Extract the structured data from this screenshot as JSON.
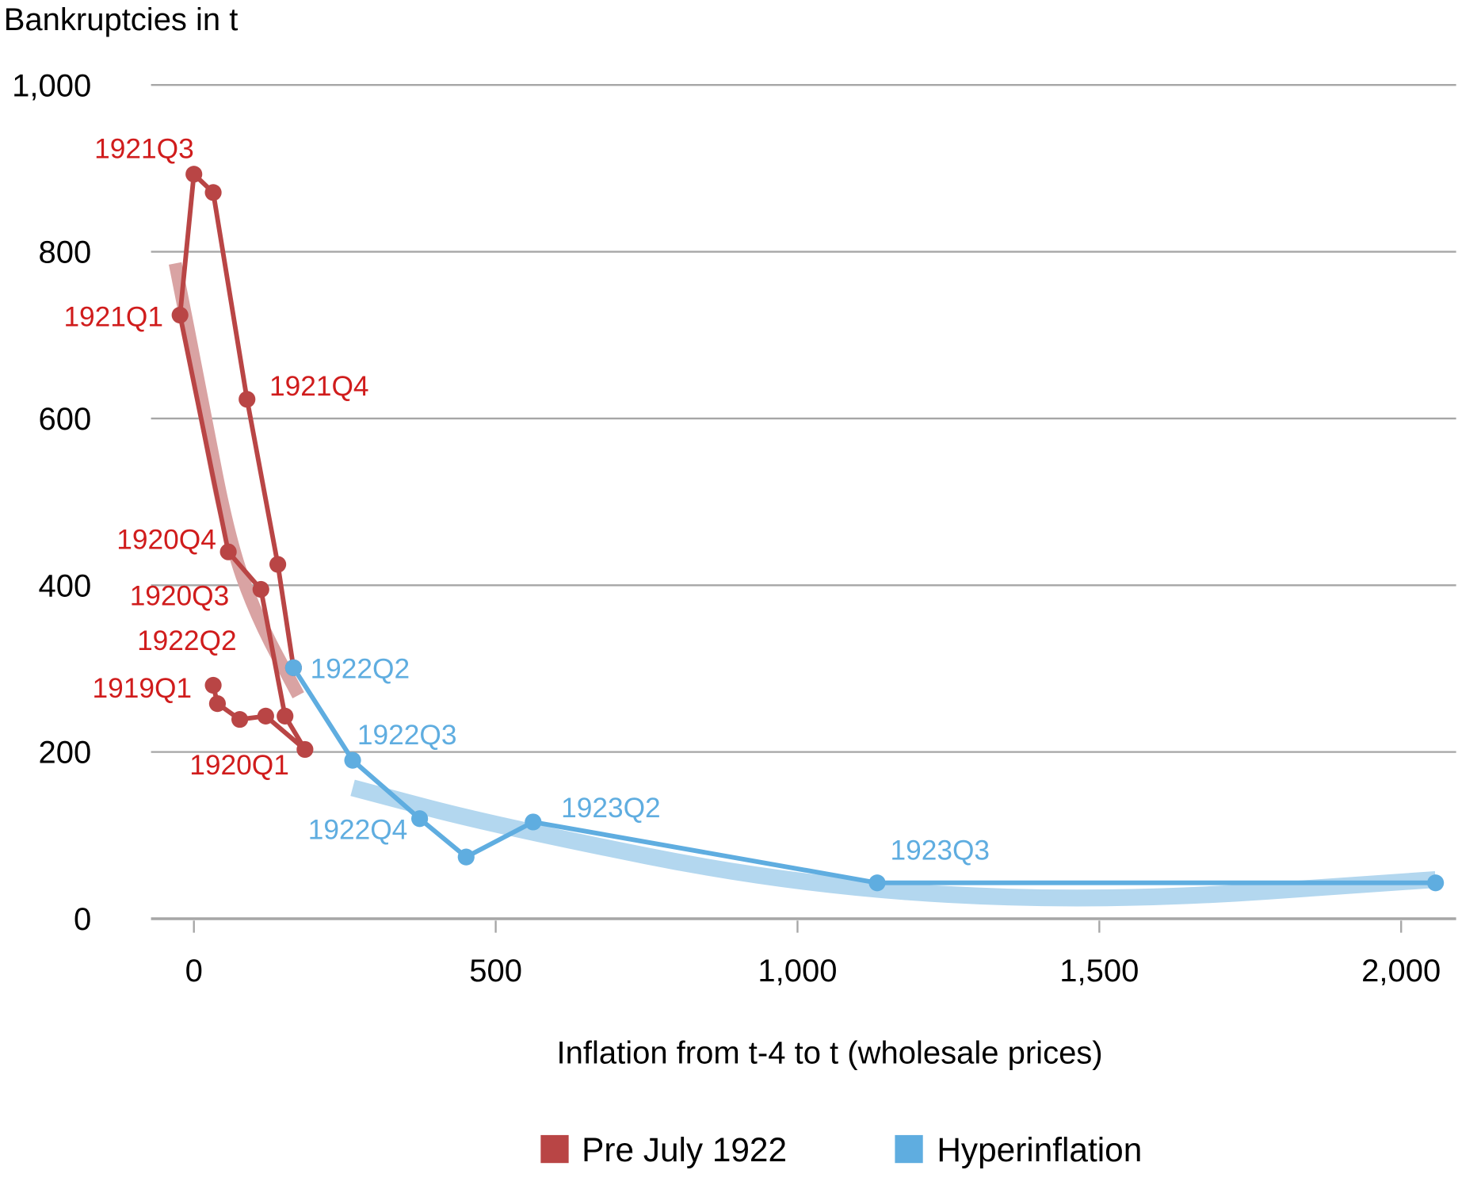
{
  "chart_data": {
    "type": "line",
    "ylabel": "Bankruptcies in t",
    "xlabel": "Inflation from t-4 to t (wholesale prices)",
    "xlim": [
      -70,
      2080
    ],
    "ylim": [
      0,
      1000
    ],
    "x_ticks": [
      0,
      500,
      1000,
      1500,
      2000
    ],
    "x_tick_labels": [
      "0",
      "500",
      "1,000",
      "1,500",
      "2,000"
    ],
    "y_ticks": [
      0,
      200,
      400,
      600,
      800,
      1000
    ],
    "y_tick_labels": [
      "0",
      "200",
      "400",
      "600",
      "800",
      "1,000"
    ],
    "grid": "horizontal",
    "legend_position": "bottom",
    "series": [
      {
        "name": "Pre July 1922",
        "color": "#b94545",
        "points": [
          [
            32,
            280
          ],
          [
            39,
            258
          ],
          [
            76,
            239
          ],
          [
            119,
            243
          ],
          [
            184,
            203
          ],
          [
            151,
            243
          ],
          [
            111,
            395
          ],
          [
            57,
            440
          ],
          [
            -23,
            724
          ],
          [
            0,
            893
          ],
          [
            32,
            871
          ],
          [
            88,
            623
          ],
          [
            139,
            425
          ],
          [
            165,
            301
          ]
        ],
        "trend": [
          [
            -31,
            786
          ],
          [
            11,
            632
          ],
          [
            57,
            458
          ],
          [
            103,
            363
          ],
          [
            173,
            268
          ]
        ],
        "trend_color": "#d9a3a3"
      },
      {
        "name": "Hyperinflation",
        "color": "#5fade0",
        "points": [
          [
            165,
            301
          ],
          [
            263,
            190
          ],
          [
            374,
            120
          ],
          [
            451,
            74
          ],
          [
            562,
            116
          ],
          [
            1132,
            43
          ],
          [
            2057,
            43
          ]
        ],
        "trend": [
          [
            263,
            157
          ],
          [
            497,
            112
          ],
          [
            1000,
            39
          ],
          [
            1500,
            19
          ],
          [
            2057,
            47
          ]
        ],
        "trend_color": "#b3d7ef"
      }
    ],
    "annotations": [
      {
        "text": "1921Q3",
        "series": 0,
        "x": 0,
        "y": 893
      },
      {
        "text": "1921Q1",
        "series": 0,
        "x": -23,
        "y": 724
      },
      {
        "text": "1921Q4",
        "series": 0,
        "x": 88,
        "y": 623
      },
      {
        "text": "1920Q4",
        "series": 0,
        "x": 57,
        "y": 440
      },
      {
        "text": "1920Q3",
        "series": 0,
        "x": 111,
        "y": 395
      },
      {
        "text": "1922Q2",
        "series": 0,
        "x": 165,
        "y": 301
      },
      {
        "text": "1919Q1",
        "series": 0,
        "x": 32,
        "y": 280
      },
      {
        "text": "1920Q1",
        "series": 0,
        "x": 184,
        "y": 203
      },
      {
        "text": "1922Q2",
        "series": 1,
        "x": 165,
        "y": 301
      },
      {
        "text": "1922Q3",
        "series": 1,
        "x": 263,
        "y": 190
      },
      {
        "text": "1922Q4",
        "series": 1,
        "x": 374,
        "y": 120
      },
      {
        "text": "1923Q2",
        "series": 1,
        "x": 562,
        "y": 116
      },
      {
        "text": "1923Q3",
        "series": 1,
        "x": 1132,
        "y": 43
      }
    ],
    "label_colors": {
      "pre": "#d01c1c",
      "hyper": "#5fade0"
    }
  }
}
